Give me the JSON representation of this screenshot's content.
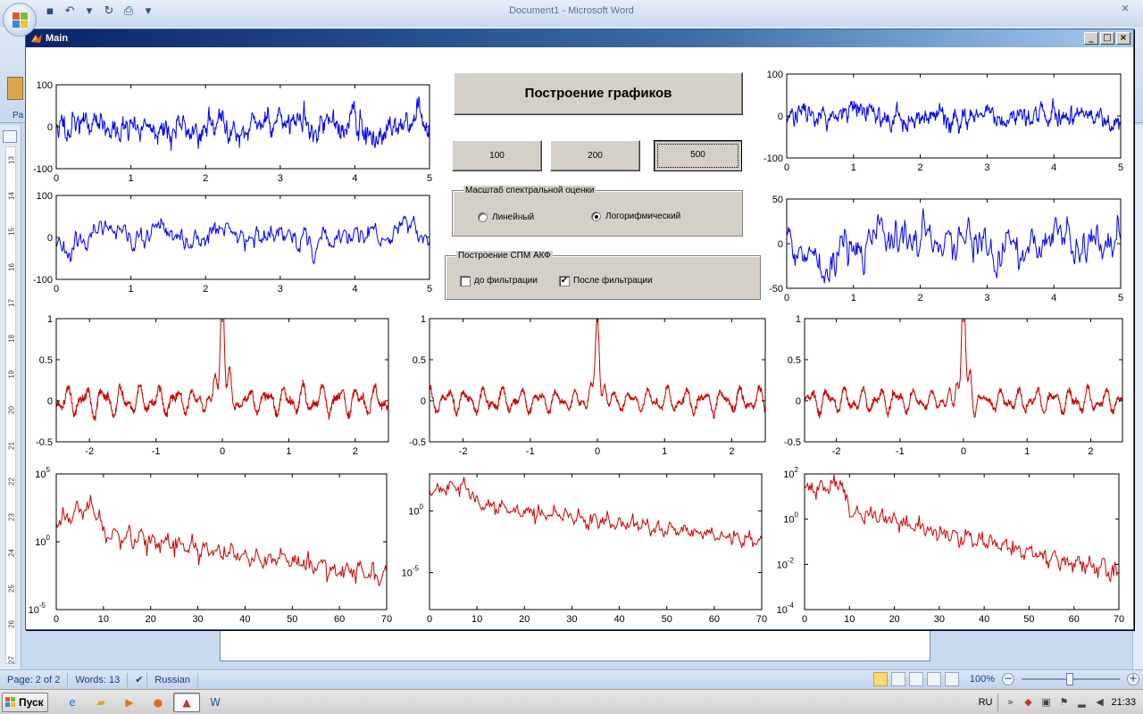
{
  "word": {
    "title": "Document1 - Microsoft Word",
    "paste_label": "Pa",
    "ruler_numbers": [
      "13",
      "14",
      "15",
      "16",
      "17",
      "18",
      "19",
      "20",
      "21",
      "22",
      "23",
      "24",
      "25",
      "26",
      "27"
    ],
    "status": {
      "page": "Page: 2 of 2",
      "words": "Words: 13",
      "language": "Russian",
      "zoom": "100%",
      "zoom_minus": "−",
      "zoom_plus": "+"
    }
  },
  "taskbar": {
    "start_label": "Пуск",
    "language": "RU",
    "clock": "21:33",
    "apps": [
      "ie-icon",
      "folder-icon",
      "media-player-icon",
      "firefox-icon",
      "matlab-icon",
      "word-icon"
    ]
  },
  "window": {
    "title": "Main",
    "minimize": "_",
    "maximize": "□",
    "close": "×"
  },
  "controls": {
    "plot_button": "Построение графиков",
    "count_buttons": [
      "100",
      "200",
      "500"
    ],
    "selected_count": "500",
    "scale_panel": {
      "title": "Масштаб спектральной оценки",
      "linear": "Линейный",
      "log": "Логорифмический",
      "selected": "log"
    },
    "psd_panel": {
      "title": "Построение СПМ АКФ",
      "before": "до фильтрации",
      "after": "После фильтрации",
      "before_checked": false,
      "after_checked": true
    }
  },
  "colors": {
    "signal": "#0000ff",
    "acf": "#cc0000"
  },
  "chart_data": [
    {
      "id": "signal-1",
      "type": "line",
      "color": "#0000ff",
      "xlim": [
        0,
        5
      ],
      "ylim": [
        -100,
        100
      ],
      "xticks": [
        0,
        1,
        2,
        3,
        4,
        5
      ],
      "yticks": [
        100,
        0,
        -100
      ],
      "signal": {
        "kind": "noise",
        "x0": 0,
        "x1": 5,
        "n": 700,
        "mean": 0,
        "amp": 24,
        "seed": 11
      }
    },
    {
      "id": "signal-2",
      "type": "line",
      "color": "#0000ff",
      "xlim": [
        0,
        5
      ],
      "ylim": [
        -100,
        100
      ],
      "xticks": [
        0,
        1,
        2,
        3,
        4,
        5
      ],
      "yticks": [
        100,
        0,
        -100
      ],
      "signal": {
        "kind": "noise",
        "x0": 0,
        "x1": 5,
        "n": 450,
        "mean": 0,
        "amp": 20,
        "seed": 23
      }
    },
    {
      "id": "signal-3",
      "type": "line",
      "color": "#0000ff",
      "xlim": [
        0,
        5
      ],
      "ylim": [
        -100,
        100
      ],
      "xticks": [
        0,
        1,
        2,
        3,
        4,
        5
      ],
      "yticks": [
        100,
        0,
        -100
      ],
      "signal": {
        "kind": "noise",
        "x0": 0,
        "x1": 5,
        "n": 700,
        "mean": 0,
        "amp": 18,
        "seed": 37
      }
    },
    {
      "id": "signal-4",
      "type": "line",
      "color": "#0000ff",
      "xlim": [
        0,
        5
      ],
      "ylim": [
        -50,
        50
      ],
      "xticks": [
        0,
        1,
        2,
        3,
        4,
        5
      ],
      "yticks": [
        50,
        0,
        -50
      ],
      "signal": {
        "kind": "noise",
        "x0": 0,
        "x1": 5,
        "n": 400,
        "mean": 0,
        "amp": 18,
        "seed": 41
      }
    },
    {
      "id": "acf-1",
      "type": "line",
      "color": "#cc0000",
      "xlim": [
        -2.5,
        2.5
      ],
      "ylim": [
        -0.5,
        1
      ],
      "xticks": [
        -2,
        -1,
        0,
        1,
        2
      ],
      "yticks": [
        1,
        0.5,
        0,
        -0.5
      ],
      "signal": {
        "kind": "acf",
        "x0": -2.5,
        "x1": 2.5,
        "n": 1000,
        "peak": 1,
        "side": 0.55,
        "amp": 0.12,
        "seed": 5
      }
    },
    {
      "id": "acf-2",
      "type": "line",
      "color": "#cc0000",
      "xlim": [
        -2.5,
        2.5
      ],
      "ylim": [
        -0.5,
        1
      ],
      "xticks": [
        -2,
        -1,
        0,
        1,
        2
      ],
      "yticks": [
        1,
        0.5,
        0,
        -0.5
      ],
      "signal": {
        "kind": "acf",
        "x0": -2.5,
        "x1": 2.5,
        "n": 1000,
        "peak": 0.68,
        "side": 0.35,
        "amp": 0.1,
        "seed": 9
      }
    },
    {
      "id": "acf-3",
      "type": "line",
      "color": "#cc0000",
      "xlim": [
        -2.5,
        2.5
      ],
      "ylim": [
        -0.5,
        1
      ],
      "xticks": [
        -2,
        -1,
        0,
        1,
        2
      ],
      "yticks": [
        1,
        0.5,
        0,
        -0.5
      ],
      "signal": {
        "kind": "acf",
        "x0": -2.5,
        "x1": 2.5,
        "n": 1000,
        "peak": 0.98,
        "side": 0.5,
        "amp": 0.1,
        "seed": 13
      }
    },
    {
      "id": "psd-1",
      "type": "line",
      "yscale": "log",
      "color": "#cc0000",
      "xlim": [
        0,
        70
      ],
      "ylim_exp": [
        -5,
        5
      ],
      "xticks": [
        0,
        10,
        20,
        30,
        40,
        50,
        60,
        70
      ],
      "yticks_exp": [
        5,
        0,
        -5
      ],
      "signal": {
        "kind": "psd",
        "x0": 0,
        "x1": 70,
        "n": 300,
        "start": 1.5,
        "hump": 2.8,
        "end": -2.5,
        "amp": 0.6,
        "seed": 17
      }
    },
    {
      "id": "psd-2",
      "type": "line",
      "yscale": "log",
      "color": "#cc0000",
      "xlim": [
        0,
        70
      ],
      "ylim_exp": [
        -8,
        3
      ],
      "xticks": [
        0,
        10,
        20,
        30,
        40,
        50,
        60,
        70
      ],
      "yticks_exp": [
        0,
        -5
      ],
      "signal": {
        "kind": "psd",
        "x0": 0,
        "x1": 70,
        "n": 300,
        "start": 1.6,
        "hump": 2.0,
        "end": -2.5,
        "amp": 0.5,
        "seed": 29
      }
    },
    {
      "id": "psd-3",
      "type": "line",
      "yscale": "log",
      "color": "#cc0000",
      "xlim": [
        0,
        70
      ],
      "ylim_exp": [
        -4,
        2
      ],
      "xticks": [
        0,
        10,
        20,
        30,
        40,
        50,
        60,
        70
      ],
      "yticks_exp": [
        2,
        0,
        -2,
        -4
      ],
      "signal": {
        "kind": "psd",
        "x0": 0,
        "x1": 70,
        "n": 300,
        "start": 1.2,
        "hump": 1.6,
        "end": -2.4,
        "amp": 0.35,
        "seed": 31
      }
    }
  ]
}
